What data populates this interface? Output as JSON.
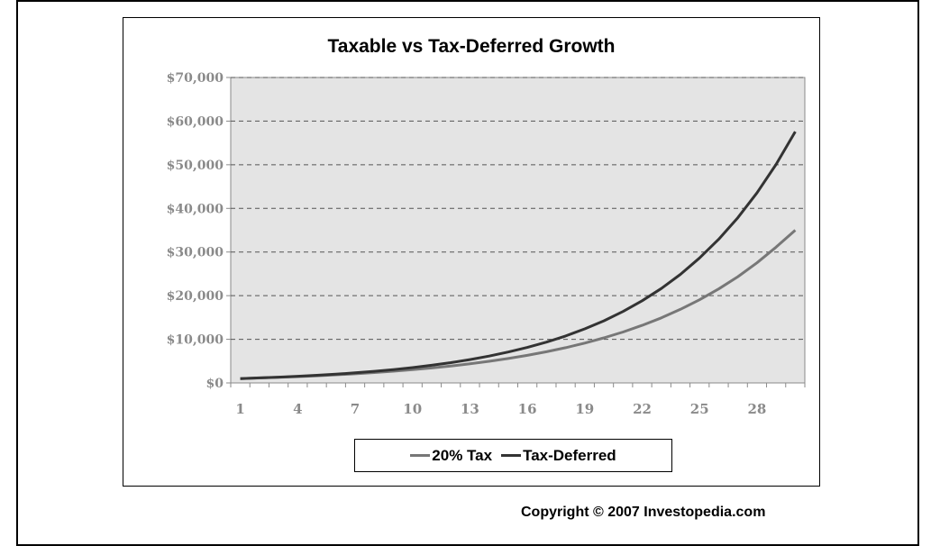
{
  "page": {
    "copyright": "Copyright © 2007 Investopedia.com"
  },
  "chart_data": {
    "type": "line",
    "title": "Taxable vs Tax-Deferred Growth",
    "xlabel": "",
    "ylabel": "",
    "x": [
      1,
      2,
      3,
      4,
      5,
      6,
      7,
      8,
      9,
      10,
      11,
      12,
      13,
      14,
      15,
      16,
      17,
      18,
      19,
      20,
      21,
      22,
      23,
      24,
      25,
      26,
      27,
      28,
      29,
      30
    ],
    "x_tick_labels": [
      "1",
      "4",
      "7",
      "10",
      "13",
      "16",
      "19",
      "22",
      "25",
      "28"
    ],
    "y_tick_labels": [
      "$0",
      "$10,000",
      "$20,000",
      "$30,000",
      "$40,000",
      "$50,000",
      "$60,000",
      "$70,000"
    ],
    "ylim": [
      0,
      70000
    ],
    "grid": "horizontal dashed",
    "legend_position": "bottom",
    "plot_background": "#e4e4e4",
    "series": [
      {
        "name": "20% Tax",
        "color": "#777777",
        "values": [
          1000,
          1130,
          1280,
          1450,
          1640,
          1850,
          2090,
          2370,
          2680,
          3030,
          3420,
          3870,
          4380,
          4950,
          5590,
          6320,
          7150,
          8080,
          9130,
          10320,
          11670,
          13190,
          14910,
          16860,
          19050,
          21540,
          24350,
          27520,
          31110,
          35000
        ]
      },
      {
        "name": "Tax-Deferred",
        "color": "#333333",
        "values": [
          1000,
          1150,
          1320,
          1520,
          1750,
          2010,
          2310,
          2660,
          3060,
          3520,
          4050,
          4650,
          5350,
          6150,
          7080,
          8140,
          9360,
          10760,
          12380,
          14230,
          16370,
          18830,
          21640,
          24890,
          28630,
          32920,
          37860,
          43540,
          50070,
          57580
        ]
      }
    ]
  }
}
